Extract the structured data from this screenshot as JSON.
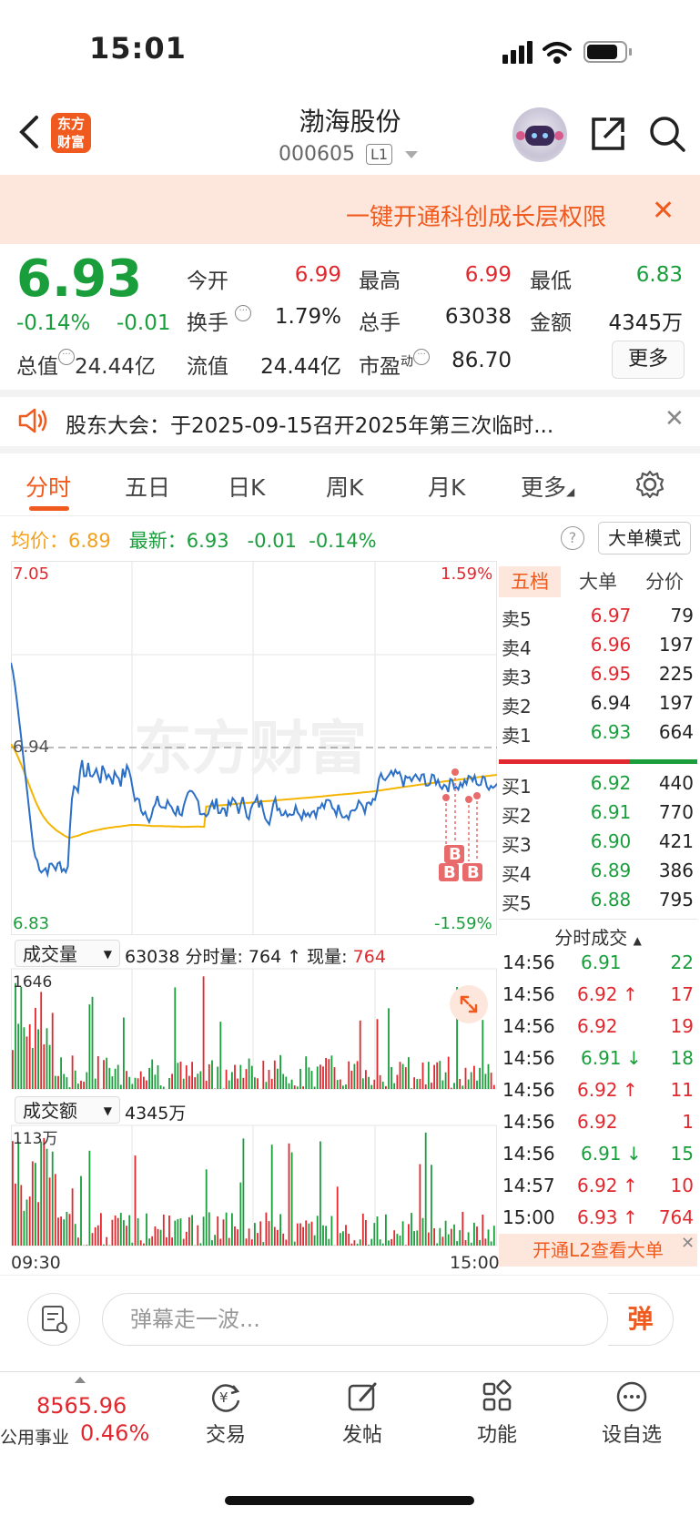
{
  "status": {
    "time": "15:01"
  },
  "header": {
    "name": "渤海股份",
    "code": "000605",
    "badge": "L1",
    "logo_line1": "东方",
    "logo_line2": "财富"
  },
  "banner": {
    "text": "一键开通科创成长层权限"
  },
  "quote": {
    "price": "6.93",
    "change_pct": "-0.14%",
    "change": "-0.01",
    "open_label": "今开",
    "open": "6.99",
    "high_label": "最高",
    "high": "6.99",
    "low_label": "最低",
    "low": "6.83",
    "turnover_label": "换手",
    "turnover": "1.79%",
    "volume_label": "总手",
    "volume": "63038",
    "amount_label": "金额",
    "amount": "4345万",
    "mktcap_label": "总值",
    "mktcap": "24.44亿",
    "float_label": "流值",
    "float": "24.44亿",
    "pe_label": "市盈",
    "pe_sup": "动",
    "pe": "86.70",
    "more": "更多"
  },
  "notice": {
    "text": "股东大会：于2025-09-15召开2025年第三次临时..."
  },
  "tabs": [
    "分时",
    "五日",
    "日K",
    "周K",
    "月K",
    "更多"
  ],
  "avg": {
    "avg_label": "均价：",
    "avg": "6.89",
    "latest_label": "最新：",
    "latest": "6.93",
    "chg": "-0.01",
    "pct": "-0.14%",
    "mode": "大单模式"
  },
  "chart": {
    "price_high": "7.05",
    "price_low": "6.83",
    "pct_high": "1.59%",
    "pct_low": "-1.59%",
    "ref": "6.94",
    "vol_select": "成交量",
    "vol_info": "63038 分时量: 764 ↑ 现量:",
    "vol_now": "764",
    "vol_max": "1646",
    "amt_select": "成交额",
    "amt_info": "4345万",
    "amt_max": "113万",
    "time_start": "09:30",
    "time_end": "15:00",
    "watermark": "东方财富",
    "b_marker": "B"
  },
  "order_book": {
    "tabs": [
      "五档",
      "大单",
      "分价"
    ],
    "asks": [
      {
        "label": "卖5",
        "price": "6.97",
        "vol": "79"
      },
      {
        "label": "卖4",
        "price": "6.96",
        "vol": "197"
      },
      {
        "label": "卖3",
        "price": "6.95",
        "vol": "225"
      },
      {
        "label": "卖2",
        "price": "6.94",
        "vol": "197"
      },
      {
        "label": "卖1",
        "price": "6.93",
        "vol": "664"
      }
    ],
    "bids": [
      {
        "label": "买1",
        "price": "6.92",
        "vol": "440"
      },
      {
        "label": "买2",
        "price": "6.91",
        "vol": "770"
      },
      {
        "label": "买3",
        "price": "6.90",
        "vol": "421"
      },
      {
        "label": "买4",
        "price": "6.89",
        "vol": "386"
      },
      {
        "label": "买5",
        "price": "6.88",
        "vol": "795"
      }
    ]
  },
  "ticks": {
    "title": "分时成交",
    "rows": [
      {
        "t": "14:56",
        "p": "6.91",
        "a": "",
        "v": "22"
      },
      {
        "t": "14:56",
        "p": "6.92",
        "a": "↑",
        "v": "17"
      },
      {
        "t": "14:56",
        "p": "6.92",
        "a": "",
        "v": "19"
      },
      {
        "t": "14:56",
        "p": "6.91",
        "a": "↓",
        "v": "18"
      },
      {
        "t": "14:56",
        "p": "6.92",
        "a": "↑",
        "v": "11"
      },
      {
        "t": "14:56",
        "p": "6.92",
        "a": "",
        "v": "1"
      },
      {
        "t": "14:56",
        "p": "6.91",
        "a": "↓",
        "v": "15"
      },
      {
        "t": "14:57",
        "p": "6.92",
        "a": "↑",
        "v": "10"
      },
      {
        "t": "15:00",
        "p": "6.93",
        "a": "↑",
        "v": "764"
      }
    ],
    "l2": "开通L2查看大单"
  },
  "comment": {
    "placeholder": "弹幕走一波...",
    "button": "弹"
  },
  "bottom": {
    "index_value": "8565.96",
    "index_name": "公用事业",
    "index_change": "0.46%",
    "trade": "交易",
    "post": "发帖",
    "func": "功能",
    "watch": "设自选"
  }
}
